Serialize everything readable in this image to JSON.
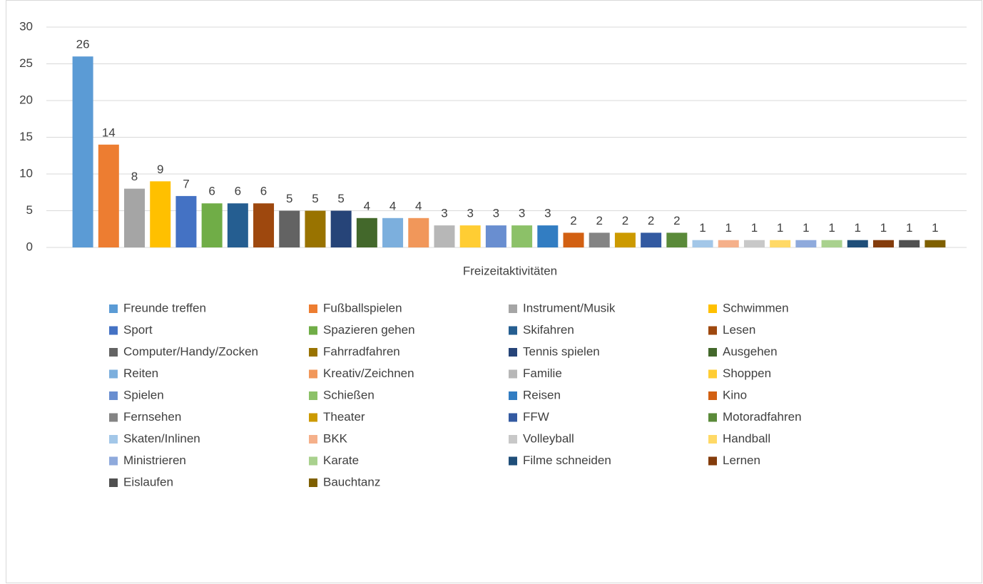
{
  "chart_data": {
    "type": "bar",
    "x_label": "Freizeitaktivitäten",
    "categories": [
      "Freunde treffen",
      "Fußballspielen",
      "Instrument/Musik",
      "Schwimmen",
      "Sport",
      "Spazieren gehen",
      "Skifahren",
      "Lesen",
      "Computer/Handy/Zocken",
      "Fahrradfahren",
      "Tennis spielen",
      "Ausgehen",
      "Reiten",
      "Kreativ/Zeichnen",
      "Familie",
      "Shoppen",
      "Spielen",
      "Schießen",
      "Reisen",
      "Kino",
      "Fernsehen",
      "Theater",
      "FFW",
      "Motoradfahren",
      "Skaten/Inlinen",
      "BKK",
      "Volleyball",
      "Handball",
      "Ministrieren",
      "Karate",
      "Filme schneiden",
      "Lernen",
      "Eislaufen",
      "Bauchtanz"
    ],
    "values": [
      26,
      14,
      8,
      9,
      7,
      6,
      6,
      6,
      5,
      5,
      5,
      4,
      4,
      4,
      3,
      3,
      3,
      3,
      3,
      2,
      2,
      2,
      2,
      2,
      1,
      1,
      1,
      1,
      1,
      1,
      1,
      1,
      1,
      1
    ],
    "colors": [
      "#5b9bd5",
      "#ed7d31",
      "#a5a5a5",
      "#ffc000",
      "#4472c4",
      "#70ad47",
      "#255e91",
      "#9e480e",
      "#636363",
      "#997300",
      "#264478",
      "#43682b",
      "#7cafdd",
      "#f1975a",
      "#b7b7b7",
      "#ffcd33",
      "#698ed0",
      "#8cc168",
      "#327dc2",
      "#d26012",
      "#848484",
      "#cc9a00",
      "#335aa1",
      "#5a8a39",
      "#a3c7e8",
      "#f5b08a",
      "#c8c8c8",
      "#ffd966",
      "#8faadc",
      "#a9d18e",
      "#1f4e79",
      "#843c0c",
      "#505050",
      "#7f6000"
    ],
    "ylim": [
      0,
      30
    ],
    "yticks": [
      0,
      5,
      10,
      15,
      20,
      25,
      30
    ],
    "grid": true,
    "legend": "bottom"
  }
}
